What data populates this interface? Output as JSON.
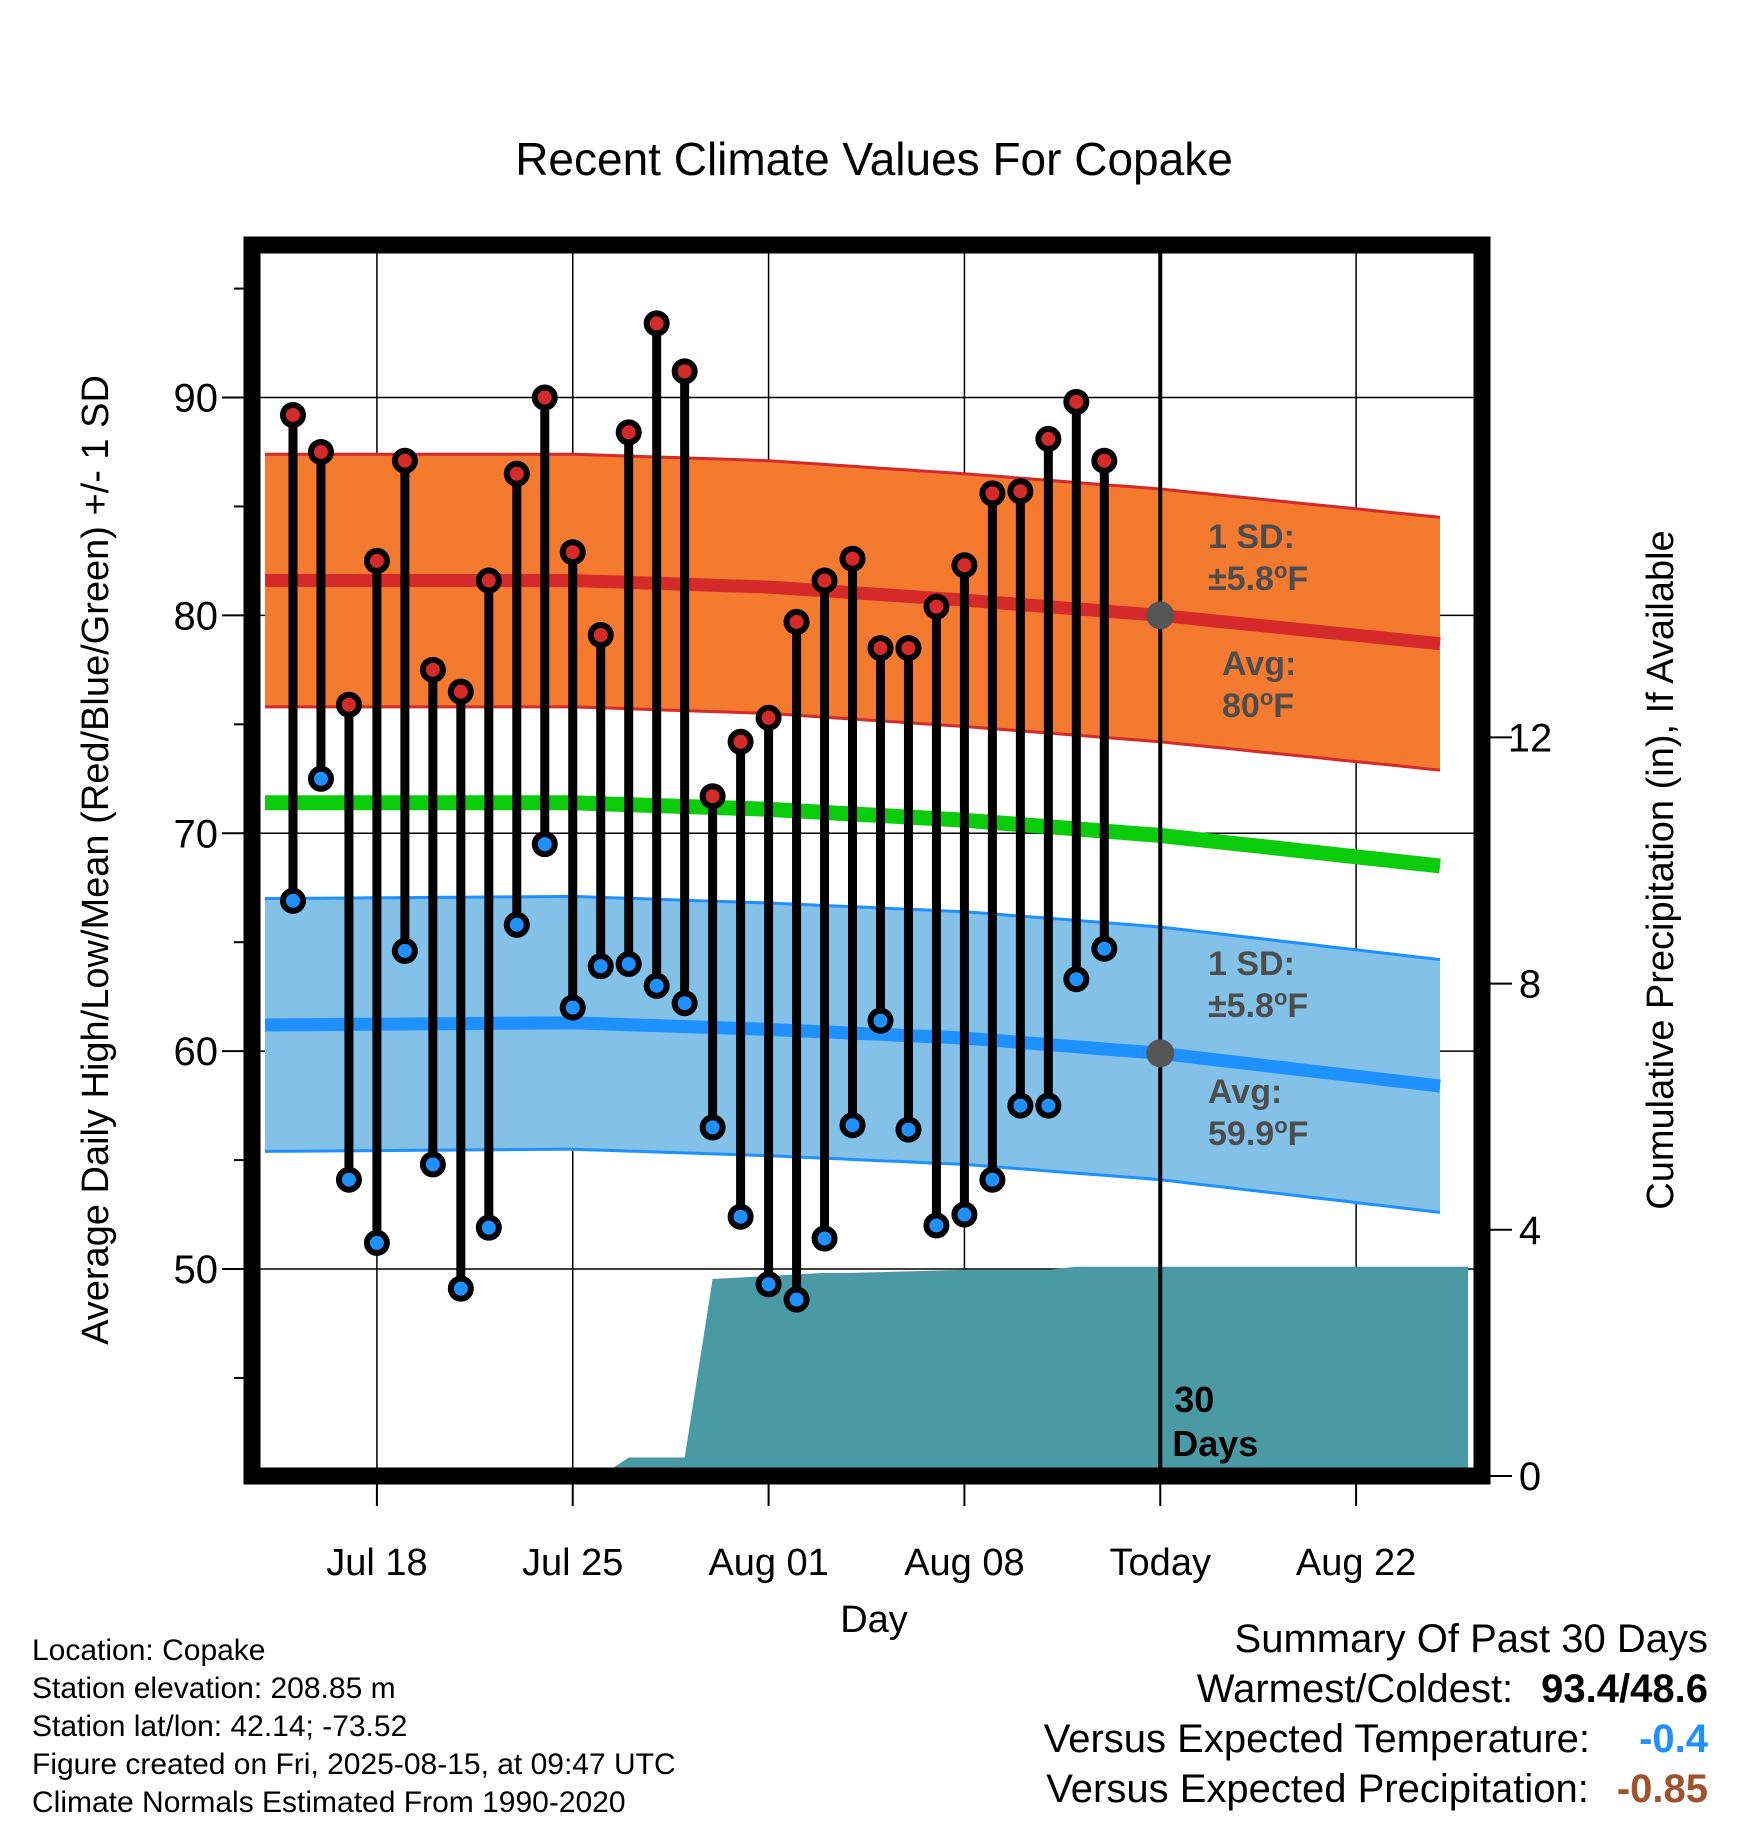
{
  "chart_data": {
    "type": "line",
    "title": "Recent Climate Values For Copake",
    "xlabel": "Day",
    "ylabel": "Average Daily High/Low/Mean (Red/Blue/Green) +/- 1 SD",
    "y2label": "Cumulative Precipitation (in), If Available",
    "xlim": [
      "2025-07-14",
      "2025-08-26"
    ],
    "ylim": [
      40.5,
      97
    ],
    "y2lim": [
      0,
      20
    ],
    "x_ticks": [
      "Jul 18",
      "Jul 25",
      "Aug 01",
      "Aug 08",
      "Today",
      "Aug 22"
    ],
    "x_tick_dates": [
      "2025-07-18",
      "2025-07-25",
      "2025-08-01",
      "2025-08-08",
      "2025-08-15",
      "2025-08-22"
    ],
    "y_ticks": [
      50,
      60,
      70,
      80,
      90
    ],
    "y2_ticks": [
      0,
      4,
      8,
      12
    ],
    "grid": true,
    "today": "2025-08-15",
    "days_label": [
      "30",
      "Days"
    ],
    "normals": {
      "high_avg": {
        "dates": [
          "2025-07-14",
          "2025-07-25",
          "2025-08-01",
          "2025-08-08",
          "2025-08-15",
          "2025-08-25"
        ],
        "values": [
          81.6,
          81.6,
          81.3,
          80.7,
          80.0,
          78.7
        ]
      },
      "low_avg": {
        "dates": [
          "2025-07-14",
          "2025-07-25",
          "2025-08-01",
          "2025-08-08",
          "2025-08-15",
          "2025-08-25"
        ],
        "values": [
          61.2,
          61.3,
          61.0,
          60.6,
          59.9,
          58.4
        ]
      },
      "mean_avg": {
        "dates": [
          "2025-07-14",
          "2025-07-25",
          "2025-08-01",
          "2025-08-08",
          "2025-08-15",
          "2025-08-25"
        ],
        "values": [
          71.4,
          71.4,
          71.1,
          70.6,
          69.9,
          68.5
        ]
      },
      "sd": 5.8
    },
    "series": [
      {
        "name": "High",
        "dates": [
          "2025-07-15",
          "2025-07-16",
          "2025-07-17",
          "2025-07-18",
          "2025-07-19",
          "2025-07-20",
          "2025-07-21",
          "2025-07-22",
          "2025-07-23",
          "2025-07-24",
          "2025-07-25",
          "2025-07-26",
          "2025-07-27",
          "2025-07-28",
          "2025-07-29",
          "2025-07-30",
          "2025-07-31",
          "2025-08-01",
          "2025-08-02",
          "2025-08-03",
          "2025-08-04",
          "2025-08-05",
          "2025-08-06",
          "2025-08-07",
          "2025-08-08",
          "2025-08-09",
          "2025-08-10",
          "2025-08-11",
          "2025-08-12",
          "2025-08-13",
          "2025-08-14"
        ],
        "values": [
          89.2,
          87.5,
          75.9,
          82.5,
          87.1,
          77.5,
          76.5,
          81.6,
          86.5,
          90.0,
          82.9,
          79.1,
          88.4,
          93.4,
          91.2,
          71.7,
          74.2,
          75.3,
          79.7,
          81.6,
          82.6,
          78.5,
          78.5,
          80.4,
          82.3,
          85.6,
          85.7,
          88.1,
          89.8,
          87.1,
          null
        ]
      },
      {
        "name": "Low",
        "dates": [
          "2025-07-15",
          "2025-07-16",
          "2025-07-17",
          "2025-07-18",
          "2025-07-19",
          "2025-07-20",
          "2025-07-21",
          "2025-07-22",
          "2025-07-23",
          "2025-07-24",
          "2025-07-25",
          "2025-07-26",
          "2025-07-27",
          "2025-07-28",
          "2025-07-29",
          "2025-07-30",
          "2025-07-31",
          "2025-08-01",
          "2025-08-02",
          "2025-08-03",
          "2025-08-04",
          "2025-08-05",
          "2025-08-06",
          "2025-08-07",
          "2025-08-08",
          "2025-08-09",
          "2025-08-10",
          "2025-08-11",
          "2025-08-12",
          "2025-08-13",
          "2025-08-14"
        ],
        "values": [
          66.9,
          72.5,
          54.1,
          51.2,
          64.6,
          54.8,
          49.1,
          51.9,
          65.8,
          69.5,
          62.0,
          63.9,
          64.0,
          63.0,
          62.2,
          56.5,
          52.4,
          49.3,
          48.6,
          51.4,
          56.6,
          61.4,
          56.4,
          52.0,
          52.5,
          54.1,
          57.5,
          57.5,
          63.3,
          64.7,
          null
        ]
      }
    ],
    "precip": {
      "dates": [
        "2025-07-25",
        "2025-07-26",
        "2025-07-27",
        "2025-07-28",
        "2025-07-29",
        "2025-07-30",
        "2025-08-03",
        "2025-08-04",
        "2025-08-08",
        "2025-08-10",
        "2025-08-11",
        "2025-08-12",
        "2025-08-26"
      ],
      "values": [
        0,
        0,
        0.3,
        0.3,
        0.3,
        3.2,
        3.3,
        3.3,
        3.35,
        3.35,
        3.35,
        3.4,
        3.4
      ]
    },
    "annotations": [
      {
        "line1": "1 SD:",
        "line2": "±5.8",
        "unit": "oF",
        "color": "#4d4d4d"
      },
      {
        "line1": "Avg:",
        "line2": "80",
        "unit": "oF",
        "color": "#4d4d4d"
      },
      {
        "line1": "1 SD:",
        "line2": "±5.8",
        "unit": "oF",
        "color": "#4d4d4d"
      },
      {
        "line1": "Avg:",
        "line2": "59.9",
        "unit": "oF",
        "color": "#4d4d4d"
      }
    ],
    "colors": {
      "high_band": "#f47a30",
      "high_line": "#d42a2a",
      "low_band": "#84c1e8",
      "low_line": "#1e90ff",
      "mean_line": "#0bcc0b",
      "precip": "#4a9aa5",
      "high_dot": "#d42a2a",
      "low_dot": "#1e90ff"
    }
  },
  "footer": {
    "location": "Location: Copake",
    "elevation": "Station elevation: 208.85 m",
    "latlon": "Station lat/lon: 42.14; -73.52",
    "created": "Figure created on Fri, 2025-08-15, at 09:47 UTC",
    "normals": "Climate Normals Estimated From 1990-2020"
  },
  "summary": {
    "title": "Summary Of Past 30 Days",
    "warm_label": "Warmest/Coldest:",
    "warm_value": "93.4/48.6",
    "temp_label": "Versus Expected Temperature:",
    "temp_value": "-0.4",
    "temp_color": "#1e90ff",
    "precip_label": "Versus Expected Precipitation:",
    "precip_value": "-0.85",
    "precip_color": "#a0522d"
  }
}
